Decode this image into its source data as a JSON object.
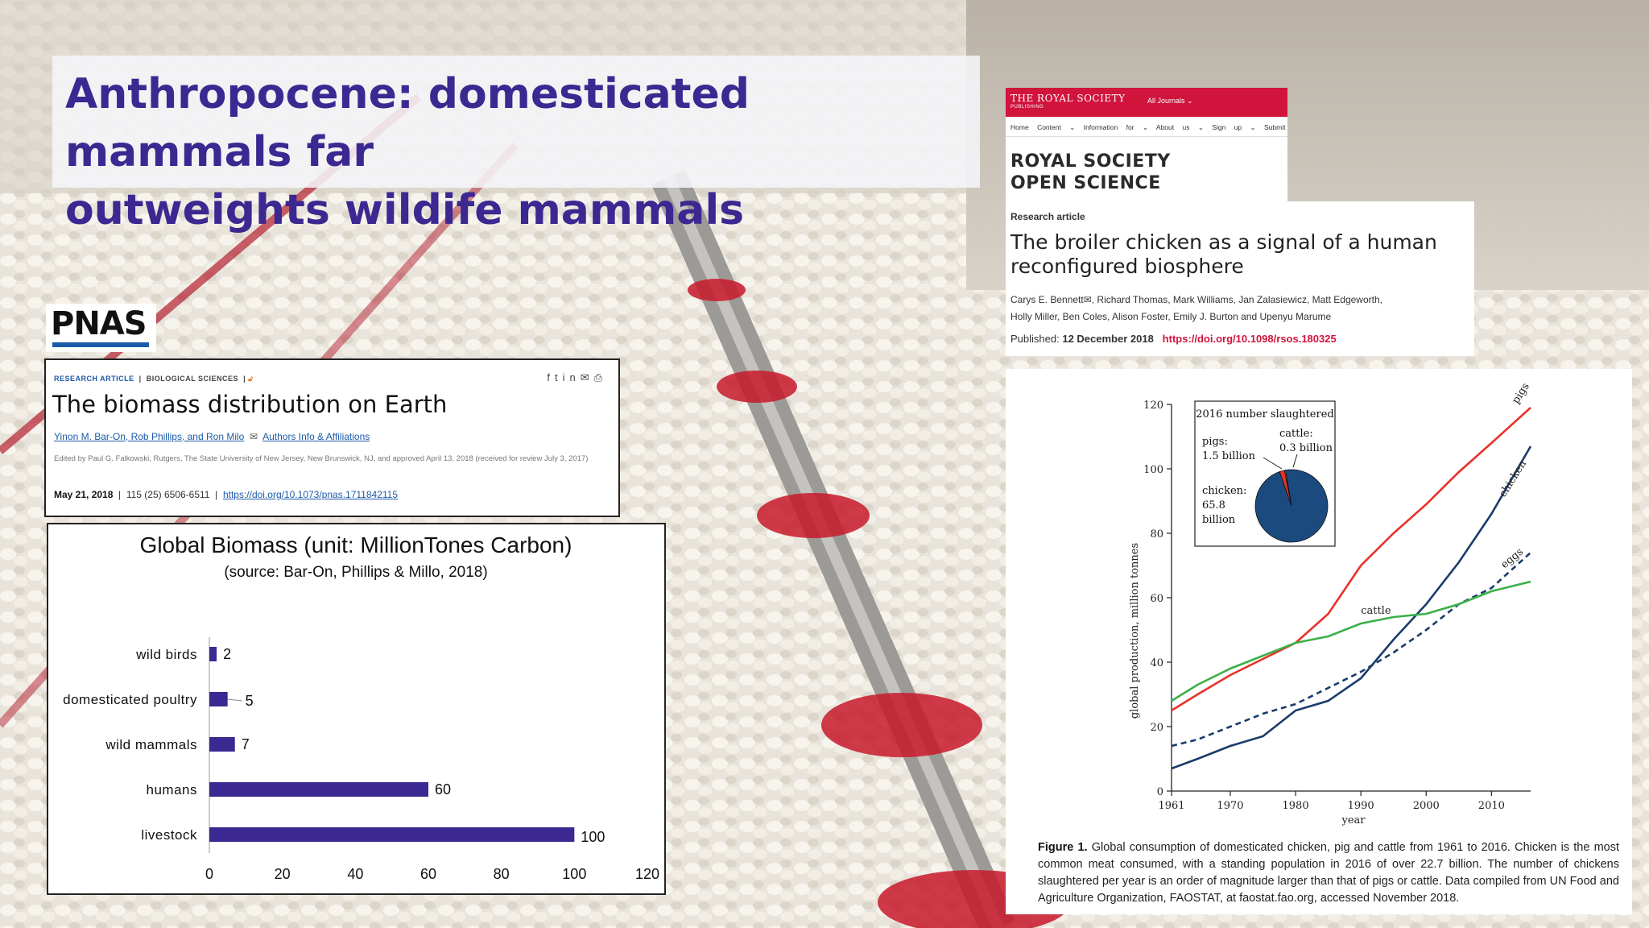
{
  "slide": {
    "title_line1": "Anthropocene: domesticated mammals far",
    "title_line2": "outweights wildife mammals"
  },
  "pnas": {
    "logo": "PNAS",
    "tag1": "RESEARCH ARTICLE",
    "tag2": "BIOLOGICAL SCIENCES",
    "title": "The biomass distribution on Earth",
    "authors": "Yinon M. Bar-On, Rob Phillips, and Ron Milo",
    "authors_link": "Authors Info & Affiliations",
    "edited": "Edited by Paul G. Falkowski, Rutgers, The State University of New Jersey, New Brunswick, NJ, and approved April 13, 2018 (received for review July 3, 2017)",
    "date": "May 21, 2018",
    "volume": "115 (25) 6506-6511",
    "doi": "https://doi.org/10.1073/pnas.1711842115"
  },
  "biomass_chart": {
    "title": "Global Biomass (unit: MillionTones Carbon)",
    "subtitle": "(source: Bar-On, Phillips & Millo, 2018)",
    "categories": [
      "wild birds",
      "domesticated poultry",
      "wild mammals",
      "humans",
      "livestock"
    ],
    "values": [
      2,
      5,
      7,
      60,
      100
    ],
    "value_labels": [
      "2",
      "5",
      "7",
      "60",
      "100"
    ],
    "xlim": [
      0,
      120
    ],
    "x_ticks": [
      "0",
      "20",
      "40",
      "60",
      "80",
      "100",
      "120"
    ],
    "bar_color": "#3b2891"
  },
  "royal_society": {
    "publisher": "THE ROYAL SOCIETY",
    "publisher_sub": "PUBLISHING",
    "journals_menu": "All Journals ⌄",
    "nav": [
      "Home",
      "Content ⌄",
      "Information for ⌄",
      "About us ⌄",
      "Sign up ⌄",
      "Submit"
    ],
    "journal_line1": "ROYAL SOCIETY",
    "journal_line2": "OPEN SCIENCE",
    "kind": "Research article",
    "title": "The broiler chicken as a signal of a human reconfigured biosphere",
    "authors_line1": "Carys E. Bennett✉, Richard Thomas, Mark Williams, Jan Zalasiewicz, Matt Edgeworth,",
    "authors_line2": "Holly Miller, Ben Coles, Alison Foster, Emily J. Burton and Upenyu Marume",
    "published_label": "Published:",
    "published_date": "12 December 2018",
    "doi": "https://doi.org/10.1098/rsos.180325",
    "brand_color": "#d0143c"
  },
  "production_chart": {
    "ylabel": "global production, million tonnes",
    "xlabel": "year",
    "x_ticks": [
      "1961",
      "1970",
      "1980",
      "1990",
      "2000",
      "2010"
    ],
    "y_ticks": [
      "0",
      "20",
      "40",
      "60",
      "80",
      "100",
      "120"
    ],
    "xlim": [
      1961,
      2016
    ],
    "ylim": [
      0,
      120
    ],
    "series": [
      {
        "name": "pigs",
        "color": "#e8322a",
        "style": "solid",
        "x": [
          1961,
          1965,
          1970,
          1975,
          1980,
          1985,
          1990,
          1995,
          2000,
          2005,
          2010,
          2016
        ],
        "y": [
          25,
          30,
          36,
          41,
          46,
          55,
          70,
          80,
          89,
          99,
          108,
          119
        ]
      },
      {
        "name": "chicken",
        "color": "#1b3c6b",
        "style": "solid",
        "x": [
          1961,
          1965,
          1970,
          1975,
          1980,
          1985,
          1990,
          1995,
          2000,
          2005,
          2010,
          2016
        ],
        "y": [
          7,
          10,
          14,
          17,
          25,
          28,
          35,
          47,
          58,
          71,
          86,
          107
        ]
      },
      {
        "name": "eggs",
        "color": "#1b3c6b",
        "style": "dashed",
        "x": [
          1961,
          1965,
          1970,
          1975,
          1980,
          1985,
          1990,
          1995,
          2000,
          2005,
          2010,
          2016
        ],
        "y": [
          14,
          16,
          20,
          24,
          27,
          32,
          37,
          43,
          50,
          58,
          63,
          74
        ]
      },
      {
        "name": "cattle",
        "color": "#3bb04a",
        "style": "solid",
        "x": [
          1961,
          1965,
          1970,
          1975,
          1980,
          1985,
          1990,
          1995,
          2000,
          2005,
          2010,
          2016
        ],
        "y": [
          28,
          33,
          38,
          42,
          46,
          48,
          52,
          54,
          55,
          58,
          62,
          65
        ]
      }
    ],
    "inset": {
      "title": "2016 number slaughtered",
      "pigs_label": "pigs:",
      "pigs_value": "1.5 billion",
      "cattle_label": "cattle:",
      "cattle_value": "0.3 billion",
      "chicken_label": "chicken:",
      "chicken_value1": "65.8",
      "chicken_value2": "billion",
      "slices": [
        {
          "name": "chicken",
          "value": 65.8,
          "color": "#1b4a7e"
        },
        {
          "name": "pigs",
          "value": 1.5,
          "color": "#e8322a"
        },
        {
          "name": "cattle",
          "value": 0.3,
          "color": "#d9a23a"
        }
      ]
    },
    "caption_label": "Figure 1.",
    "caption_text": "Global consumption of domesticated chicken, pig and cattle from 1961 to 2016. Chicken is the most common meat consumed, with a standing population in 2016 of over 22.7 billion. The number of chickens slaughtered per year is an order of magnitude larger than that of pigs or cattle. Data compiled from UN Food and Agriculture Organization, FAOSTAT, at faostat.fao.org, accessed November 2018."
  },
  "chart_data": [
    {
      "type": "bar",
      "title": "Global Biomass (unit: MillionTones Carbon)",
      "subtitle": "(source: Bar-On, Phillips & Millo, 2018)",
      "orientation": "horizontal",
      "categories": [
        "wild birds",
        "domesticated poultry",
        "wild mammals",
        "humans",
        "livestock"
      ],
      "values": [
        2,
        5,
        7,
        60,
        100
      ],
      "xlim": [
        0,
        120
      ],
      "grid": false,
      "legend": "none"
    },
    {
      "type": "line",
      "xlabel": "year",
      "ylabel": "global production, million tonnes",
      "xlim": [
        1961,
        2016
      ],
      "ylim": [
        0,
        120
      ],
      "grid": false,
      "legend": "inline labels",
      "series": [
        {
          "name": "pigs",
          "x": [
            1961,
            1965,
            1970,
            1975,
            1980,
            1985,
            1990,
            1995,
            2000,
            2005,
            2010,
            2016
          ],
          "y": [
            25,
            30,
            36,
            41,
            46,
            55,
            70,
            80,
            89,
            99,
            108,
            119
          ]
        },
        {
          "name": "chicken",
          "x": [
            1961,
            1965,
            1970,
            1975,
            1980,
            1985,
            1990,
            1995,
            2000,
            2005,
            2010,
            2016
          ],
          "y": [
            7,
            10,
            14,
            17,
            25,
            28,
            35,
            47,
            58,
            71,
            86,
            107
          ]
        },
        {
          "name": "eggs",
          "x": [
            1961,
            1965,
            1970,
            1975,
            1980,
            1985,
            1990,
            1995,
            2000,
            2005,
            2010,
            2016
          ],
          "y": [
            14,
            16,
            20,
            24,
            27,
            32,
            37,
            43,
            50,
            58,
            63,
            74
          ]
        },
        {
          "name": "cattle",
          "x": [
            1961,
            1965,
            1970,
            1975,
            1980,
            1985,
            1990,
            1995,
            2000,
            2005,
            2010,
            2016
          ],
          "y": [
            28,
            33,
            38,
            42,
            46,
            48,
            52,
            54,
            55,
            58,
            62,
            65
          ]
        }
      ]
    },
    {
      "type": "pie",
      "title": "2016 number slaughtered",
      "slices": [
        {
          "name": "chicken",
          "value": 65.8
        },
        {
          "name": "pigs",
          "value": 1.5
        },
        {
          "name": "cattle",
          "value": 0.3
        }
      ]
    }
  ]
}
